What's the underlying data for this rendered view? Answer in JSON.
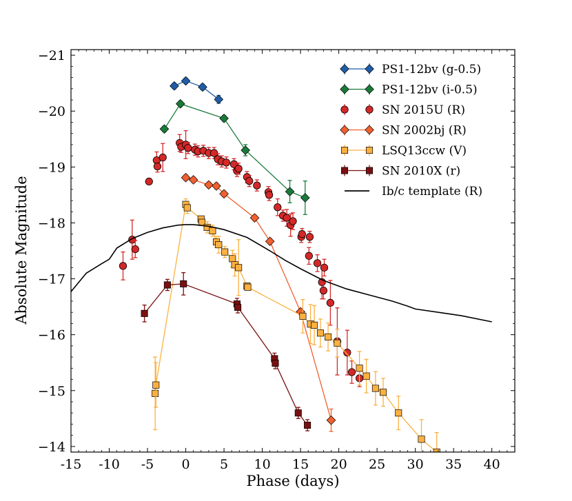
{
  "chart_data": {
    "type": "scatter",
    "title": "",
    "xlabel": "Phase (days)",
    "ylabel": "Absolute Magnitude",
    "xlim": [
      -15,
      43
    ],
    "ylim": [
      -13.9,
      -21.1
    ],
    "y_inverted": true,
    "grid": false,
    "legend_position": "top-right",
    "x_ticks": [
      -15,
      -10,
      -5,
      0,
      5,
      10,
      15,
      20,
      25,
      30,
      35,
      40
    ],
    "x_tick_labels": [
      "-15",
      "-10",
      "-5",
      "0",
      "5",
      "10",
      "15",
      "20",
      "25",
      "30",
      "35",
      "40"
    ],
    "y_ticks": [
      -21,
      -20,
      -19,
      -18,
      -17,
      -16,
      -15,
      -14
    ],
    "y_tick_labels": [
      "−21",
      "−20",
      "−19",
      "−18",
      "−17",
      "−16",
      "−15",
      "−14"
    ],
    "series": [
      {
        "name": "PS1-12bv (g-0.5)",
        "color": "#1f5da8",
        "marker": "diamond",
        "connect": true,
        "points": [
          {
            "x": -1.5,
            "y": -20.45,
            "err": 0.05
          },
          {
            "x": 0,
            "y": -20.54,
            "err": 0.05
          },
          {
            "x": 2.2,
            "y": -20.43,
            "err": 0.05
          },
          {
            "x": 4.3,
            "y": -20.21,
            "err": 0.07
          }
        ]
      },
      {
        "name": "PS1-12bv (i-0.5)",
        "color": "#1a7a3a",
        "marker": "diamond",
        "connect": true,
        "points": [
          {
            "x": -2.8,
            "y": -19.68,
            "err": 0.05
          },
          {
            "x": -0.7,
            "y": -20.13,
            "err": 0.05
          },
          {
            "x": 5.0,
            "y": -19.87,
            "err": 0.05
          },
          {
            "x": 7.8,
            "y": -19.3,
            "err": 0.1
          },
          {
            "x": 13.6,
            "y": -18.56,
            "err": 0.2
          },
          {
            "x": 15.6,
            "y": -18.45,
            "err": 0.3
          }
        ]
      },
      {
        "name": "SN 2015U (R)",
        "color": "#d42828",
        "marker": "circle",
        "connect": false,
        "points": [
          {
            "x": -8.2,
            "y": -17.23,
            "err": 0.25
          },
          {
            "x": -7.0,
            "y": -17.7,
            "err": 0.35
          },
          {
            "x": -6.6,
            "y": -17.53,
            "err": 0.15
          },
          {
            "x": -4.8,
            "y": -18.74,
            "err": 0.05
          },
          {
            "x": -3.8,
            "y": -19.12,
            "err": 0.15
          },
          {
            "x": -3.7,
            "y": -19.01,
            "err": 0.1
          },
          {
            "x": -3.0,
            "y": -19.17,
            "err": 0.25
          },
          {
            "x": -0.8,
            "y": -19.43,
            "err": 0.15
          },
          {
            "x": -0.6,
            "y": -19.36,
            "err": 0.1
          },
          {
            "x": 0.0,
            "y": -19.4,
            "err": 0.25
          },
          {
            "x": 0.3,
            "y": -19.34,
            "err": 0.1
          },
          {
            "x": 1.2,
            "y": -19.31,
            "err": 0.1
          },
          {
            "x": 1.6,
            "y": -19.28,
            "err": 0.1
          },
          {
            "x": 2.3,
            "y": -19.29,
            "err": 0.1
          },
          {
            "x": 3.0,
            "y": -19.25,
            "err": 0.1
          },
          {
            "x": 3.7,
            "y": -19.25,
            "err": 0.1
          },
          {
            "x": 4.2,
            "y": -19.14,
            "err": 0.1
          },
          {
            "x": 4.7,
            "y": -19.1,
            "err": 0.1
          },
          {
            "x": 5.3,
            "y": -19.08,
            "err": 0.1
          },
          {
            "x": 6.3,
            "y": -19.05,
            "err": 0.1
          },
          {
            "x": 6.7,
            "y": -18.93,
            "err": 0.1
          },
          {
            "x": 6.9,
            "y": -18.97,
            "err": 0.1
          },
          {
            "x": 8.0,
            "y": -18.82,
            "err": 0.1
          },
          {
            "x": 8.3,
            "y": -18.75,
            "err": 0.1
          },
          {
            "x": 9.3,
            "y": -18.67,
            "err": 0.1
          },
          {
            "x": 10.8,
            "y": -18.55,
            "err": 0.1
          },
          {
            "x": 10.9,
            "y": -18.5,
            "err": 0.1
          },
          {
            "x": 12.0,
            "y": -18.28,
            "err": 0.15
          },
          {
            "x": 12.7,
            "y": -18.13,
            "err": 0.1
          },
          {
            "x": 13.2,
            "y": -18.09,
            "err": 0.15
          },
          {
            "x": 13.7,
            "y": -17.96,
            "err": 0.2
          },
          {
            "x": 14.0,
            "y": -18.03,
            "err": 0.15
          },
          {
            "x": 15.1,
            "y": -17.75,
            "err": 0.1
          },
          {
            "x": 15.2,
            "y": -17.8,
            "err": 0.1
          },
          {
            "x": 16.2,
            "y": -17.75,
            "err": 0.1
          },
          {
            "x": 16.1,
            "y": -17.41,
            "err": 0.15
          },
          {
            "x": 17.2,
            "y": -17.28,
            "err": 0.15
          },
          {
            "x": 17.8,
            "y": -16.94,
            "err": 0.3
          },
          {
            "x": 18.1,
            "y": -17.2,
            "err": 0.15
          },
          {
            "x": 18.0,
            "y": -16.79,
            "err": 0.15
          },
          {
            "x": 18.9,
            "y": -16.57,
            "err": 0.4
          },
          {
            "x": 19.8,
            "y": -15.88,
            "err": 0.6
          },
          {
            "x": 21.1,
            "y": -15.68,
            "err": 0.4
          },
          {
            "x": 21.7,
            "y": -15.33,
            "err": 0.2
          },
          {
            "x": 22.7,
            "y": -15.22,
            "err": 0.15
          }
        ]
      },
      {
        "name": "SN 2002bj (R)",
        "color": "#f06030",
        "marker": "diamond",
        "connect": true,
        "points": [
          {
            "x": 0,
            "y": -18.81,
            "err": 0.05
          },
          {
            "x": 1,
            "y": -18.77,
            "err": 0.05
          },
          {
            "x": 3,
            "y": -18.68,
            "err": 0.05
          },
          {
            "x": 4,
            "y": -18.66,
            "err": 0.05
          },
          {
            "x": 5,
            "y": -18.52,
            "err": 0.05
          },
          {
            "x": 9,
            "y": -18.09,
            "err": 0.05
          },
          {
            "x": 11,
            "y": -17.67,
            "err": 0.05
          },
          {
            "x": 15,
            "y": -16.41,
            "err": 0.05
          },
          {
            "x": 19,
            "y": -14.47,
            "err": 0.2
          }
        ]
      },
      {
        "name": "LSQ13ccw (V)",
        "color": "#fbb040",
        "marker": "square",
        "connect": true,
        "points": [
          {
            "x": -4.0,
            "y": -14.95,
            "err": 0.65
          },
          {
            "x": -3.9,
            "y": -15.1,
            "err": 0.4
          },
          {
            "x": 0.0,
            "y": -18.33,
            "err": 0.1
          },
          {
            "x": 0.2,
            "y": -18.27,
            "err": 0.1
          },
          {
            "x": 2.0,
            "y": -18.07,
            "err": 0.05
          },
          {
            "x": 2.1,
            "y": -18.01,
            "err": 0.05
          },
          {
            "x": 2.8,
            "y": -17.92,
            "err": 0.1
          },
          {
            "x": 3.5,
            "y": -17.86,
            "err": 0.1
          },
          {
            "x": 4.0,
            "y": -17.66,
            "err": 0.1
          },
          {
            "x": 4.3,
            "y": -17.61,
            "err": 0.15
          },
          {
            "x": 5.1,
            "y": -17.48,
            "err": 0.1
          },
          {
            "x": 6.1,
            "y": -17.36,
            "err": 0.15
          },
          {
            "x": 6.4,
            "y": -17.25,
            "err": 0.2
          },
          {
            "x": 6.9,
            "y": -17.2,
            "err": 0.5
          },
          {
            "x": 8.0,
            "y": -16.87,
            "err": 0.05
          },
          {
            "x": 8.1,
            "y": -16.85,
            "err": 0.05
          },
          {
            "x": 15.3,
            "y": -16.33,
            "err": 0.3
          },
          {
            "x": 16.3,
            "y": -16.19,
            "err": 0.35
          },
          {
            "x": 16.8,
            "y": -16.17,
            "err": 0.35
          },
          {
            "x": 17.6,
            "y": -16.03,
            "err": 0.25
          },
          {
            "x": 18.6,
            "y": -15.96,
            "err": 0.25
          },
          {
            "x": 19.8,
            "y": -15.85,
            "err": 0.25
          },
          {
            "x": 22.7,
            "y": -15.4,
            "err": 0.3
          },
          {
            "x": 23.6,
            "y": -15.26,
            "err": 0.3
          },
          {
            "x": 24.8,
            "y": -15.04,
            "err": 0.3
          },
          {
            "x": 25.8,
            "y": -14.97,
            "err": 0.25
          },
          {
            "x": 27.8,
            "y": -14.6,
            "err": 0.3
          },
          {
            "x": 30.8,
            "y": -14.13,
            "err": 0.35
          },
          {
            "x": 32.8,
            "y": -13.9,
            "err": 0.35
          }
        ]
      },
      {
        "name": "SN 2010X (r)",
        "color": "#7a1010",
        "marker": "square",
        "connect": true,
        "points": [
          {
            "x": -5.4,
            "y": -16.38,
            "err": 0.15
          },
          {
            "x": -2.4,
            "y": -16.89,
            "err": 0.1
          },
          {
            "x": -0.3,
            "y": -16.91,
            "err": 0.2
          },
          {
            "x": 6.7,
            "y": -16.55,
            "err": 0.1
          },
          {
            "x": 6.8,
            "y": -16.49,
            "err": 0.1
          },
          {
            "x": 11.6,
            "y": -15.57,
            "err": 0.1
          },
          {
            "x": 11.7,
            "y": -15.49,
            "err": 0.1
          },
          {
            "x": 14.7,
            "y": -14.6,
            "err": 0.1
          },
          {
            "x": 15.9,
            "y": -14.38,
            "err": 0.1
          }
        ]
      },
      {
        "name": "Ib/c template (R)",
        "color": "#000000",
        "marker": "none",
        "connect": true,
        "points": [
          {
            "x": -15,
            "y": -16.77
          },
          {
            "x": -13,
            "y": -17.1
          },
          {
            "x": -11,
            "y": -17.27
          },
          {
            "x": -10,
            "y": -17.35
          },
          {
            "x": -9,
            "y": -17.55
          },
          {
            "x": -7,
            "y": -17.72
          },
          {
            "x": -5,
            "y": -17.83
          },
          {
            "x": -3,
            "y": -17.91
          },
          {
            "x": -1,
            "y": -17.96
          },
          {
            "x": 0,
            "y": -17.97
          },
          {
            "x": 1,
            "y": -17.97
          },
          {
            "x": 3,
            "y": -17.94
          },
          {
            "x": 5,
            "y": -17.88
          },
          {
            "x": 8,
            "y": -17.74
          },
          {
            "x": 11,
            "y": -17.5
          },
          {
            "x": 13,
            "y": -17.33
          },
          {
            "x": 15,
            "y": -17.18
          },
          {
            "x": 18,
            "y": -16.97
          },
          {
            "x": 21,
            "y": -16.82
          },
          {
            "x": 24,
            "y": -16.71
          },
          {
            "x": 27,
            "y": -16.6
          },
          {
            "x": 29,
            "y": -16.51
          },
          {
            "x": 30,
            "y": -16.46
          },
          {
            "x": 33,
            "y": -16.4
          },
          {
            "x": 36,
            "y": -16.34
          },
          {
            "x": 40,
            "y": -16.23
          }
        ]
      }
    ]
  }
}
